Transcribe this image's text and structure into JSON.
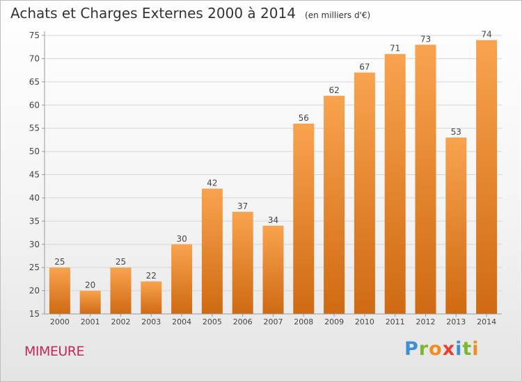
{
  "header": {
    "title": "Achats et Charges Externes 2000 à 2014",
    "unit": "(en milliers d'€)"
  },
  "footer": {
    "commune": "MIMEURE",
    "logo": "Proxiti"
  },
  "chart_data": {
    "type": "bar",
    "title": "Achats et Charges Externes 2000 à 2014",
    "subtitle": "(en milliers d'€)",
    "xlabel": "",
    "ylabel": "",
    "categories": [
      "2000",
      "2001",
      "2002",
      "2003",
      "2004",
      "2005",
      "2006",
      "2007",
      "2008",
      "2009",
      "2010",
      "2011",
      "2012",
      "2013",
      "2014"
    ],
    "values": [
      25,
      20,
      25,
      22,
      30,
      42,
      37,
      34,
      56,
      62,
      67,
      71,
      73,
      53,
      74
    ],
    "ylim": [
      15,
      75
    ],
    "yticks": [
      15,
      20,
      25,
      30,
      35,
      40,
      45,
      50,
      55,
      60,
      65,
      70,
      75
    ],
    "grid": true,
    "legend": "none",
    "colors": {
      "bar_top": "#f9a34f",
      "bar_bottom": "#cf6a12",
      "grid": "#d6d6d6",
      "axis": "#9a9a9a"
    }
  }
}
